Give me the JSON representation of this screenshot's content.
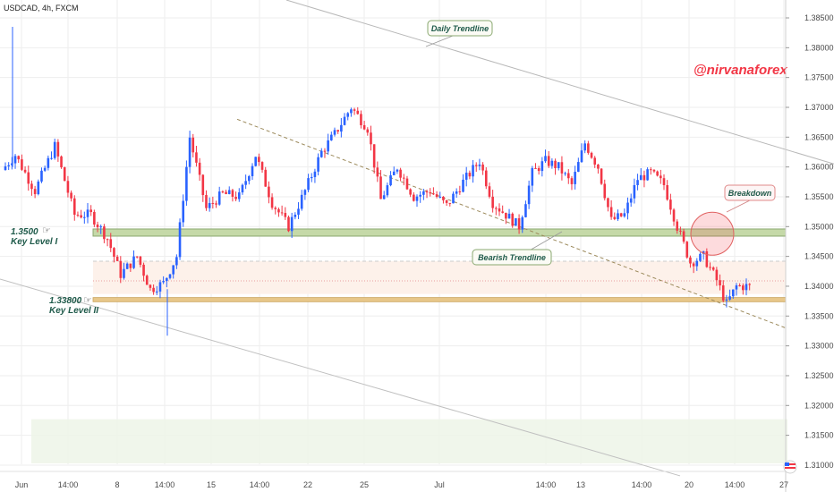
{
  "chart_data": {
    "type": "candlestick",
    "symbol": "USDCAD, 4h, FXCM",
    "watermark": "@nirvanaforex",
    "ylim": [
      1.3092,
      1.388
    ],
    "y_ticks": [
      "1.38500",
      "1.38000",
      "1.37500",
      "1.37000",
      "1.36500",
      "1.36000",
      "1.35500",
      "1.35000",
      "1.34500",
      "1.34000",
      "1.33500",
      "1.33000",
      "1.32500",
      "1.32000",
      "1.31500",
      "1.31000"
    ],
    "x_ticks": [
      "Jun",
      "14:00",
      "8",
      "14:00",
      "15",
      "14:00",
      "22",
      "25",
      "Jul",
      "14:00",
      "13",
      "14:00",
      "20",
      "14:00",
      "27"
    ],
    "colors": {
      "up": "#2962ff",
      "down": "#f23645",
      "support": "#c5d9a8",
      "support_border": "#8aa870",
      "key2": "#e8c78a",
      "band": "#fdf1ea",
      "grid": "#eeeeee"
    },
    "levels": [
      {
        "label": "1.3500",
        "name": "Key Level I",
        "value": 1.349
      },
      {
        "label": "1.33800",
        "name": "Key Level II",
        "value": 1.3378
      }
    ],
    "annotations": {
      "daily": "Daily Trendline",
      "bearish": "Bearish Trendline",
      "breakdown": "Breakdown"
    },
    "anchors": [
      [
        0,
        1.3595
      ],
      [
        4,
        1.362
      ],
      [
        10,
        1.356
      ],
      [
        16,
        1.3635
      ],
      [
        22,
        1.352
      ],
      [
        27,
        1.352
      ],
      [
        32,
        1.348
      ],
      [
        36,
        1.342
      ],
      [
        41,
        1.345
      ],
      [
        45,
        1.3395
      ],
      [
        49,
        1.3405
      ],
      [
        53,
        1.345
      ],
      [
        57,
        1.365
      ],
      [
        62,
        1.353
      ],
      [
        67,
        1.3555
      ],
      [
        72,
        1.355
      ],
      [
        77,
        1.362
      ],
      [
        82,
        1.354
      ],
      [
        87,
        1.35
      ],
      [
        92,
        1.356
      ],
      [
        97,
        1.3625
      ],
      [
        101,
        1.3655
      ],
      [
        106,
        1.37
      ],
      [
        111,
        1.3665
      ],
      [
        115,
        1.3545
      ],
      [
        120,
        1.36
      ],
      [
        125,
        1.355
      ],
      [
        130,
        1.356
      ],
      [
        135,
        1.3535
      ],
      [
        140,
        1.3575
      ],
      [
        145,
        1.361
      ],
      [
        149,
        1.354
      ],
      [
        153,
        1.352
      ],
      [
        157,
        1.35
      ],
      [
        161,
        1.359
      ],
      [
        165,
        1.361
      ],
      [
        169,
        1.36
      ],
      [
        173,
        1.357
      ],
      [
        177,
        1.364
      ],
      [
        181,
        1.36
      ],
      [
        185,
        1.351
      ],
      [
        189,
        1.352
      ],
      [
        193,
        1.358
      ],
      [
        197,
        1.359
      ],
      [
        201,
        1.357
      ],
      [
        205,
        1.35
      ],
      [
        209,
        1.344
      ],
      [
        213,
        1.345
      ],
      [
        217,
        1.341
      ],
      [
        220,
        1.337
      ],
      [
        223,
        1.34
      ],
      [
        226,
        1.34
      ]
    ]
  }
}
